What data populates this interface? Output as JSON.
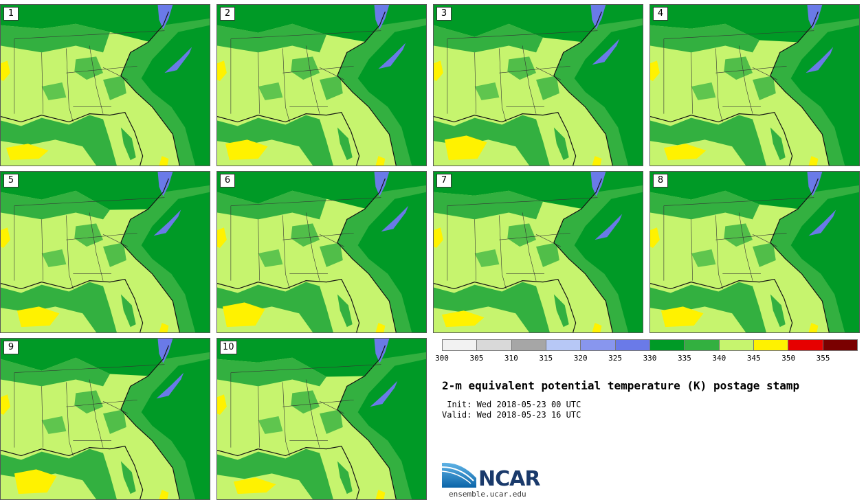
{
  "panels": [
    {
      "label": "1",
      "variant": 0
    },
    {
      "label": "2",
      "variant": 1
    },
    {
      "label": "3",
      "variant": 2
    },
    {
      "label": "4",
      "variant": 3
    },
    {
      "label": "5",
      "variant": 4
    },
    {
      "label": "6",
      "variant": 5
    },
    {
      "label": "7",
      "variant": 6
    },
    {
      "label": "8",
      "variant": 7
    },
    {
      "label": "9",
      "variant": 8
    },
    {
      "label": "10",
      "variant": 9
    }
  ],
  "colorbar": {
    "colors": [
      "#f2f2f2",
      "#d9d9d9",
      "#a6a6a6",
      "#b7c8f6",
      "#8896ee",
      "#6a7ae8",
      "#009a26",
      "#33b040",
      "#c6f46e",
      "#fff200",
      "#e60000",
      "#7a0000"
    ],
    "ticks": [
      "300",
      "305",
      "310",
      "315",
      "320",
      "325",
      "330",
      "335",
      "340",
      "345",
      "350",
      "355"
    ]
  },
  "title": "2-m equivalent potential temperature (K) postage stamp",
  "init": " Init: Wed 2018-05-23 00 UTC",
  "valid": "Valid: Wed 2018-05-23 16 UTC",
  "logo": {
    "name": "NCAR",
    "url": "ensemble.ucar.edu"
  }
}
